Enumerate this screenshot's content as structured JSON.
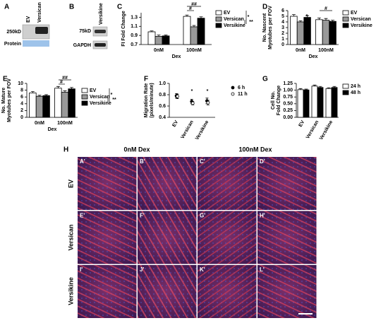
{
  "panels": {
    "A": {
      "label": "A",
      "lanes": [
        "EV",
        "Versican"
      ],
      "marker": "250kD",
      "row_label": "Protein"
    },
    "B": {
      "label": "B",
      "lanes": [
        "Versikine"
      ],
      "marker": "75kD",
      "row_label": "GAPDH"
    },
    "H": {
      "label": "H",
      "columns": [
        "0nM Dex",
        "100nM Dex"
      ],
      "rows": [
        "EV",
        "Versican",
        "Versikine"
      ],
      "cells": [
        "A'",
        "B'",
        "C'",
        "D'",
        "E'",
        "F'",
        "G'",
        "H'",
        "I'",
        "J'",
        "K'",
        "L'"
      ]
    }
  },
  "chart_data": [
    {
      "label": "C",
      "type": "bar",
      "ylabel": [
        "FI Fold Change"
      ],
      "xlabel": "Dex",
      "categories": [
        "0nM",
        "100nM"
      ],
      "series": [
        {
          "name": "EV",
          "color": "#ffffff",
          "values": [
            0.98,
            1.32
          ],
          "errors": [
            0.02,
            0.03
          ]
        },
        {
          "name": "Versican",
          "color": "#999999",
          "values": [
            0.88,
            1.09
          ],
          "errors": [
            0.03,
            0.03
          ]
        },
        {
          "name": "Versikine",
          "color": "#000000",
          "values": [
            0.89,
            1.28
          ],
          "errors": [
            0.02,
            0.03
          ]
        }
      ],
      "ylim": [
        0.7,
        1.4
      ],
      "yticks": [
        0.7,
        0.9,
        1.1,
        1.3
      ],
      "annotations": [
        "#",
        "##",
        "*",
        "**"
      ]
    },
    {
      "label": "D",
      "type": "bar",
      "ylabel": [
        "No. Nascent",
        "Myotubes per FOV"
      ],
      "xlabel": "Dex",
      "categories": [
        "0nM",
        "100nM"
      ],
      "series": [
        {
          "name": "EV",
          "color": "#ffffff",
          "values": [
            5.0,
            4.4
          ],
          "errors": [
            0.3,
            0.3
          ]
        },
        {
          "name": "Versican",
          "color": "#999999",
          "values": [
            4.0,
            4.3
          ],
          "errors": [
            0.2,
            0.3
          ]
        },
        {
          "name": "Versikine",
          "color": "#000000",
          "values": [
            4.8,
            4.1
          ],
          "errors": [
            0.3,
            0.2
          ]
        }
      ],
      "ylim": [
        0,
        6
      ],
      "yticks": [
        0,
        1,
        2,
        3,
        4,
        5,
        6
      ],
      "annotations": [
        "*",
        "#"
      ]
    },
    {
      "label": "E",
      "type": "bar",
      "ylabel": [
        "No. Mature",
        "Myotubes per FOV"
      ],
      "xlabel": "Dex",
      "categories": [
        "0nM",
        "100nM"
      ],
      "series": [
        {
          "name": "EV",
          "color": "#ffffff",
          "values": [
            7.2,
            8.6
          ],
          "errors": [
            0.4,
            0.5
          ]
        },
        {
          "name": "Versican",
          "color": "#999999",
          "values": [
            6.2,
            7.4
          ],
          "errors": [
            0.3,
            0.4
          ]
        },
        {
          "name": "Versikine",
          "color": "#000000",
          "values": [
            6.4,
            8.4
          ],
          "errors": [
            0.3,
            0.4
          ]
        }
      ],
      "ylim": [
        0,
        10
      ],
      "yticks": [
        0,
        2,
        4,
        6,
        8,
        10
      ],
      "annotations": [
        "#",
        "##",
        "*",
        "**"
      ]
    },
    {
      "label": "F",
      "type": "dot",
      "ylabel": [
        "Migration Rate",
        "(pixels/minute)"
      ],
      "categories": [
        "EV",
        "Versican",
        "Versikine"
      ],
      "series": [
        {
          "name": "6 h",
          "color": "#000000",
          "values": [
            0.78,
            0.68,
            0.69
          ],
          "errors": [
            0.04,
            0.04,
            0.05
          ]
        },
        {
          "name": "11 h",
          "color": "#ffffff",
          "values": [
            0.77,
            0.65,
            0.66
          ],
          "errors": [
            0.04,
            0.03,
            0.04
          ]
        }
      ],
      "ylim": [
        0.4,
        1.0
      ],
      "yticks": [
        0.4,
        0.6,
        0.8,
        {
          "value": 1.0,
          "label": "1.0"
        }
      ],
      "annotations": [
        "*",
        "*"
      ]
    },
    {
      "label": "G",
      "type": "bar",
      "ylabel": [
        "Cell No.",
        "Fold Change"
      ],
      "categories": [
        "EV",
        "Versican",
        "Versikine"
      ],
      "series": [
        {
          "name": "24 h",
          "color": "#ffffff",
          "values": [
            1.02,
            1.15,
            1.06
          ],
          "errors": [
            0.04,
            0.04,
            0.03
          ]
        },
        {
          "name": "48 h",
          "color": "#000000",
          "values": [
            1.01,
            1.1,
            1.1
          ],
          "errors": [
            0.03,
            0.04,
            0.04
          ]
        }
      ],
      "ylim": [
        0,
        1.25
      ],
      "yticks": [
        {
          "value": 0,
          "label": "0.00"
        },
        {
          "value": 0.25,
          "label": "0.25"
        },
        {
          "value": 0.5,
          "label": "0.50"
        },
        {
          "value": 0.75,
          "label": "0.75"
        },
        {
          "value": 1.0,
          "label": "1.00"
        },
        {
          "value": 1.25,
          "label": "1.25"
        }
      ],
      "annotations": []
    }
  ]
}
